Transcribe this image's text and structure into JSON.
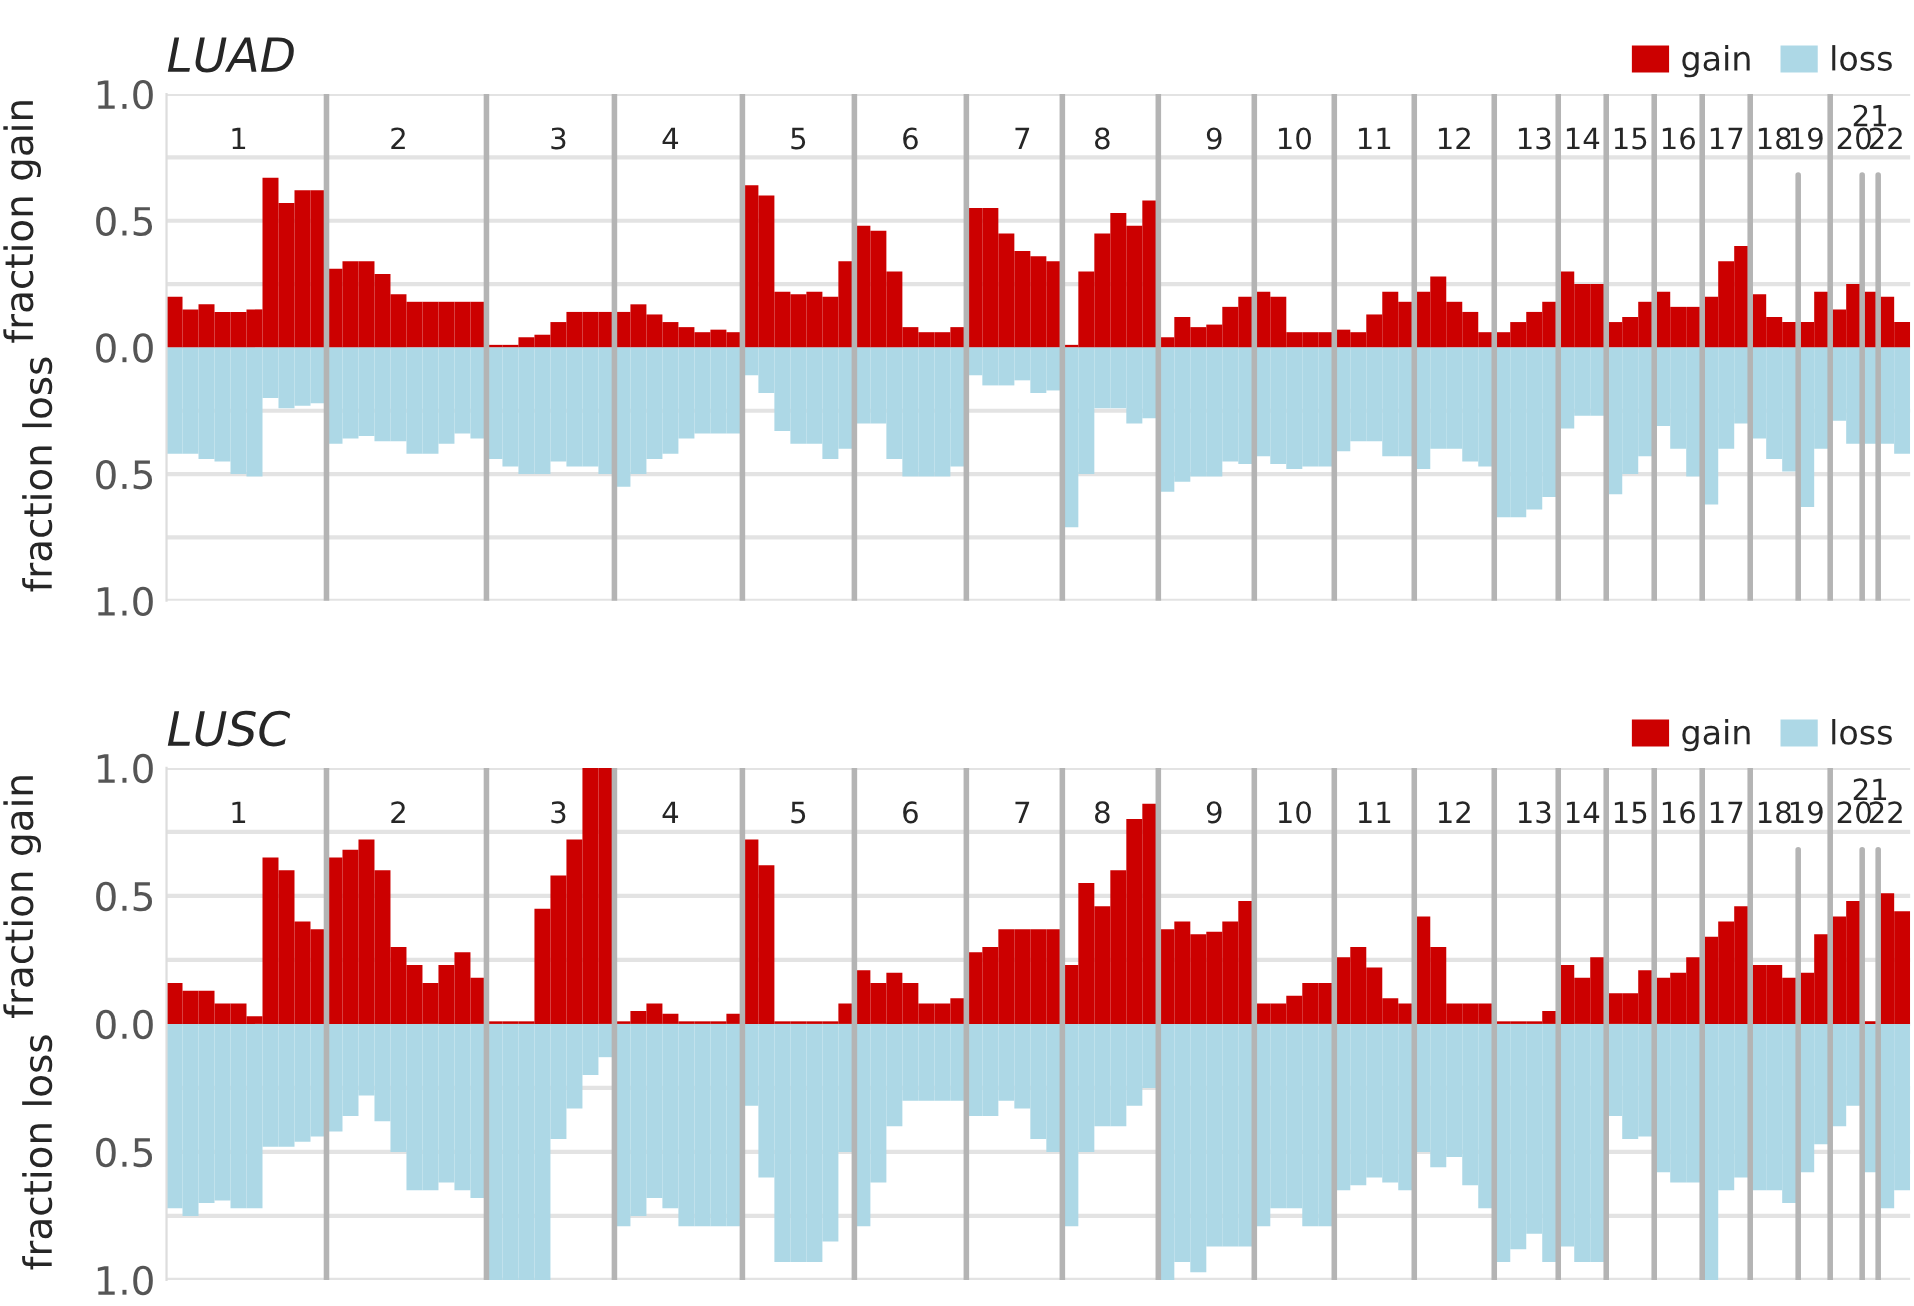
{
  "chart_data": [
    {
      "type": "bar",
      "stacked": true,
      "title": "LUAD",
      "ylabel": "fraction gain",
      "annotations": [
        "fraction loss"
      ],
      "legend": "top right",
      "grid": "y",
      "categories": [
        null,
        null,
        null,
        null,
        "1",
        null,
        null,
        null,
        null,
        null,
        null,
        null,
        null,
        null,
        "2",
        null,
        null,
        null,
        null,
        null,
        null,
        null,
        null,
        null,
        "3",
        null,
        null,
        null,
        null,
        null,
        null,
        "4",
        null,
        null,
        null,
        null,
        null,
        null,
        null,
        "5",
        null,
        null,
        null,
        null,
        null,
        null,
        "6",
        null,
        null,
        null,
        null,
        null,
        null,
        "7",
        null,
        null,
        null,
        null,
        "8",
        null,
        null,
        null,
        null,
        null,
        null,
        "9",
        null,
        null,
        null,
        null,
        "10",
        null,
        null,
        null,
        null,
        "11",
        null,
        null,
        null,
        null,
        "12",
        null,
        null,
        null,
        null,
        "13",
        null,
        null,
        "14",
        null,
        null,
        "15",
        null,
        null,
        "16",
        null,
        null,
        "17",
        null,
        null,
        "18",
        null,
        "19",
        null,
        null,
        "20",
        "21",
        "22",
        null
      ],
      "ylim": [
        -1,
        1
      ],
      "yticks": [
        {
          "value": -1,
          "label": "1.0"
        },
        {
          "value": -0.75,
          "label": null
        },
        {
          "value": -0.5,
          "label": "0.5"
        },
        {
          "value": -0.25,
          "label": null
        },
        {
          "value": 0,
          "label": "0.0"
        },
        {
          "value": 0.25,
          "label": null
        },
        {
          "value": 0.5,
          "label": "0.5"
        },
        {
          "value": 0.75,
          "label": null
        },
        {
          "value": 1,
          "label": "1.0"
        }
      ],
      "series": [
        {
          "name": "gain",
          "color": "#cc0000",
          "values": [
            0.2,
            0.15,
            0.17,
            0.14,
            0.14,
            0.15,
            0.67,
            0.57,
            0.62,
            0.62,
            0.31,
            0.34,
            0.34,
            0.29,
            0.21,
            0.18,
            0.18,
            0.18,
            0.18,
            0.18,
            0.01,
            0.01,
            0.04,
            0.05,
            0.1,
            0.14,
            0.14,
            0.14,
            0.14,
            0.17,
            0.13,
            0.1,
            0.08,
            0.06,
            0.07,
            0.06,
            0.64,
            0.6,
            0.22,
            0.21,
            0.22,
            0.2,
            0.34,
            0.48,
            0.46,
            0.3,
            0.08,
            0.06,
            0.06,
            0.08,
            0.55,
            0.55,
            0.45,
            0.38,
            0.36,
            0.34,
            0.01,
            0.3,
            0.45,
            0.53,
            0.48,
            0.58,
            0.04,
            0.12,
            0.08,
            0.09,
            0.16,
            0.2,
            0.22,
            0.2,
            0.06,
            0.06,
            0.06,
            0.07,
            0.06,
            0.13,
            0.22,
            0.18,
            0.22,
            0.28,
            0.18,
            0.14,
            0.06,
            0.06,
            0.1,
            0.14,
            0.18,
            0.3,
            0.25,
            0.25,
            0.1,
            0.12,
            0.18,
            0.22,
            0.16,
            0.16,
            0.2,
            0.34,
            0.4,
            0.21,
            0.12,
            0.1,
            0.1,
            0.22,
            0.15,
            0.25,
            0.22,
            0.2,
            0.1
          ]
        },
        {
          "name": "loss",
          "color": "#add8e6",
          "values": [
            -0.42,
            -0.42,
            -0.44,
            -0.45,
            -0.5,
            -0.51,
            -0.2,
            -0.24,
            -0.23,
            -0.22,
            -0.38,
            -0.36,
            -0.35,
            -0.37,
            -0.37,
            -0.42,
            -0.42,
            -0.38,
            -0.34,
            -0.36,
            -0.44,
            -0.47,
            -0.5,
            -0.5,
            -0.45,
            -0.47,
            -0.47,
            -0.5,
            -0.55,
            -0.5,
            -0.44,
            -0.42,
            -0.36,
            -0.34,
            -0.34,
            -0.34,
            -0.11,
            -0.18,
            -0.33,
            -0.38,
            -0.38,
            -0.44,
            -0.4,
            -0.3,
            -0.3,
            -0.44,
            -0.51,
            -0.51,
            -0.51,
            -0.47,
            -0.11,
            -0.15,
            -0.15,
            -0.13,
            -0.18,
            -0.17,
            -0.71,
            -0.5,
            -0.24,
            -0.24,
            -0.3,
            -0.28,
            -0.57,
            -0.53,
            -0.51,
            -0.51,
            -0.45,
            -0.46,
            -0.43,
            -0.46,
            -0.48,
            -0.47,
            -0.47,
            -0.41,
            -0.37,
            -0.37,
            -0.43,
            -0.43,
            -0.48,
            -0.4,
            -0.4,
            -0.45,
            -0.47,
            -0.67,
            -0.67,
            -0.64,
            -0.59,
            -0.32,
            -0.27,
            -0.27,
            -0.58,
            -0.5,
            -0.43,
            -0.31,
            -0.4,
            -0.51,
            -0.62,
            -0.4,
            -0.3,
            -0.36,
            -0.44,
            -0.49,
            -0.63,
            -0.4,
            -0.29,
            -0.38,
            -0.38,
            -0.38,
            -0.42
          ]
        }
      ]
    },
    {
      "type": "bar",
      "stacked": true,
      "title": "LUSC",
      "ylabel": "fraction gain",
      "annotations": [
        "fraction loss"
      ],
      "legend": "top right",
      "grid": "y",
      "categories": [
        null,
        null,
        null,
        null,
        "1",
        null,
        null,
        null,
        null,
        null,
        null,
        null,
        null,
        null,
        "2",
        null,
        null,
        null,
        null,
        null,
        null,
        null,
        null,
        null,
        "3",
        null,
        null,
        null,
        null,
        null,
        null,
        "4",
        null,
        null,
        null,
        null,
        null,
        null,
        null,
        "5",
        null,
        null,
        null,
        null,
        null,
        null,
        "6",
        null,
        null,
        null,
        null,
        null,
        null,
        "7",
        null,
        null,
        null,
        null,
        "8",
        null,
        null,
        null,
        null,
        null,
        null,
        "9",
        null,
        null,
        null,
        null,
        "10",
        null,
        null,
        null,
        null,
        "11",
        null,
        null,
        null,
        null,
        "12",
        null,
        null,
        null,
        null,
        "13",
        null,
        null,
        "14",
        null,
        null,
        "15",
        null,
        null,
        "16",
        null,
        null,
        "17",
        null,
        null,
        "18",
        null,
        "19",
        null,
        null,
        "20",
        "21",
        "22",
        null
      ],
      "ylim": [
        -1,
        1
      ],
      "yticks": [
        {
          "value": -1,
          "label": "1.0"
        },
        {
          "value": -0.75,
          "label": null
        },
        {
          "value": -0.5,
          "label": "0.5"
        },
        {
          "value": -0.25,
          "label": null
        },
        {
          "value": 0,
          "label": "0.0"
        },
        {
          "value": 0.25,
          "label": null
        },
        {
          "value": 0.5,
          "label": "0.5"
        },
        {
          "value": 0.75,
          "label": null
        },
        {
          "value": 1,
          "label": "1.0"
        }
      ],
      "series": [
        {
          "name": "gain",
          "color": "#cc0000",
          "values": [
            0.16,
            0.13,
            0.13,
            0.08,
            0.08,
            0.03,
            0.65,
            0.6,
            0.4,
            0.37,
            0.65,
            0.68,
            0.72,
            0.6,
            0.3,
            0.23,
            0.16,
            0.23,
            0.28,
            0.18,
            0.01,
            0.01,
            0.01,
            0.45,
            0.58,
            0.72,
            1.0,
            1.0,
            0.01,
            0.05,
            0.08,
            0.04,
            0.01,
            0.01,
            0.01,
            0.04,
            0.72,
            0.62,
            0.01,
            0.01,
            0.01,
            0.01,
            0.08,
            0.21,
            0.16,
            0.2,
            0.16,
            0.08,
            0.08,
            0.1,
            0.28,
            0.3,
            0.37,
            0.37,
            0.37,
            0.37,
            0.23,
            0.55,
            0.46,
            0.6,
            0.8,
            0.86,
            0.37,
            0.4,
            0.35,
            0.36,
            0.4,
            0.48,
            0.08,
            0.08,
            0.11,
            0.16,
            0.16,
            0.26,
            0.3,
            0.22,
            0.1,
            0.08,
            0.42,
            0.3,
            0.08,
            0.08,
            0.08,
            0.01,
            0.01,
            0.01,
            0.05,
            0.23,
            0.18,
            0.26,
            0.12,
            0.12,
            0.21,
            0.18,
            0.2,
            0.26,
            0.34,
            0.4,
            0.46,
            0.23,
            0.23,
            0.18,
            0.2,
            0.35,
            0.42,
            0.48,
            0.01,
            0.51,
            0.44
          ]
        },
        {
          "name": "loss",
          "color": "#add8e6",
          "values": [
            -0.72,
            -0.75,
            -0.7,
            -0.69,
            -0.72,
            -0.72,
            -0.48,
            -0.48,
            -0.46,
            -0.44,
            -0.42,
            -0.36,
            -0.28,
            -0.38,
            -0.5,
            -0.65,
            -0.65,
            -0.62,
            -0.65,
            -0.68,
            -1.0,
            -1.0,
            -1.0,
            -1.0,
            -0.45,
            -0.33,
            -0.2,
            -0.13,
            -0.79,
            -0.75,
            -0.68,
            -0.72,
            -0.79,
            -0.79,
            -0.79,
            -0.79,
            -0.32,
            -0.6,
            -0.93,
            -0.93,
            -0.93,
            -0.85,
            -0.5,
            -0.79,
            -0.62,
            -0.4,
            -0.3,
            -0.3,
            -0.3,
            -0.3,
            -0.36,
            -0.36,
            -0.3,
            -0.33,
            -0.45,
            -0.5,
            -0.79,
            -0.5,
            -0.4,
            -0.4,
            -0.32,
            -0.25,
            -1.0,
            -0.93,
            -0.97,
            -0.87,
            -0.87,
            -0.87,
            -0.79,
            -0.72,
            -0.72,
            -0.79,
            -0.79,
            -0.65,
            -0.63,
            -0.6,
            -0.62,
            -0.65,
            -0.5,
            -0.56,
            -0.52,
            -0.63,
            -0.72,
            -0.93,
            -0.88,
            -0.82,
            -0.93,
            -0.87,
            -0.93,
            -0.93,
            -0.36,
            -0.45,
            -0.44,
            -0.58,
            -0.62,
            -0.62,
            -1.0,
            -0.65,
            -0.6,
            -0.65,
            -0.65,
            -0.7,
            -0.58,
            -0.47,
            -0.4,
            -0.32,
            -0.58,
            -0.72,
            -0.65
          ]
        }
      ]
    }
  ]
}
